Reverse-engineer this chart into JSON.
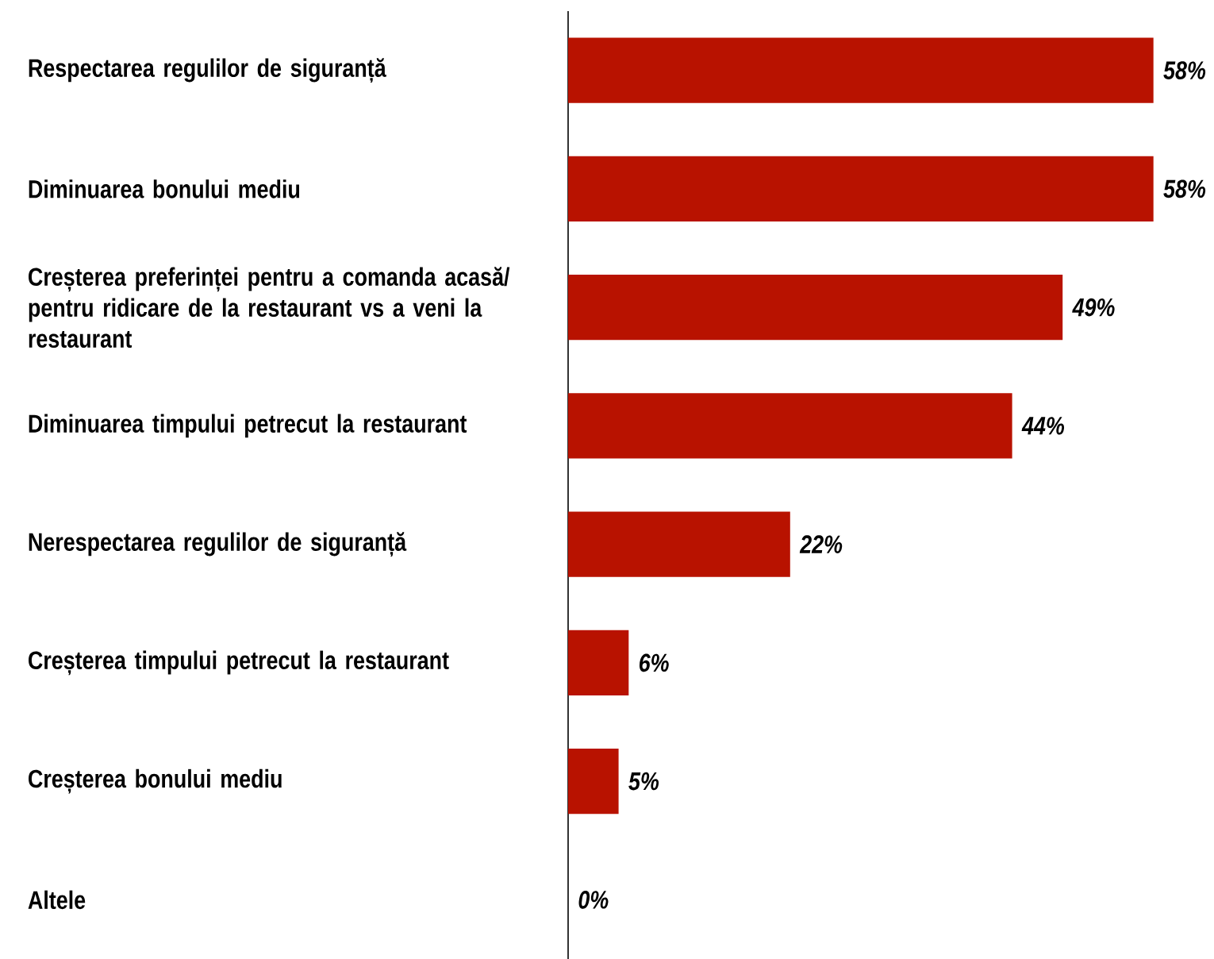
{
  "chart_data": {
    "type": "bar",
    "orientation": "horizontal",
    "categories": [
      "Respectarea regulilor de siguranță",
      "Diminuarea bonului mediu",
      "Creșterea preferinței pentru a comanda acasă/ pentru ridicare de la restaurant vs a veni la restaurant",
      "Diminuarea timpului petrecut la restaurant",
      "Nerespectarea regulilor de siguranță",
      "Creșterea timpului petrecut la restaurant",
      "Creșterea bonului mediu",
      "Altele"
    ],
    "values": [
      58,
      58,
      49,
      44,
      22,
      6,
      5,
      0
    ],
    "value_labels": [
      "58%",
      "58%",
      "49%",
      "44%",
      "22%",
      "6%",
      "5%",
      "0%"
    ],
    "color": "#b81200"
  }
}
